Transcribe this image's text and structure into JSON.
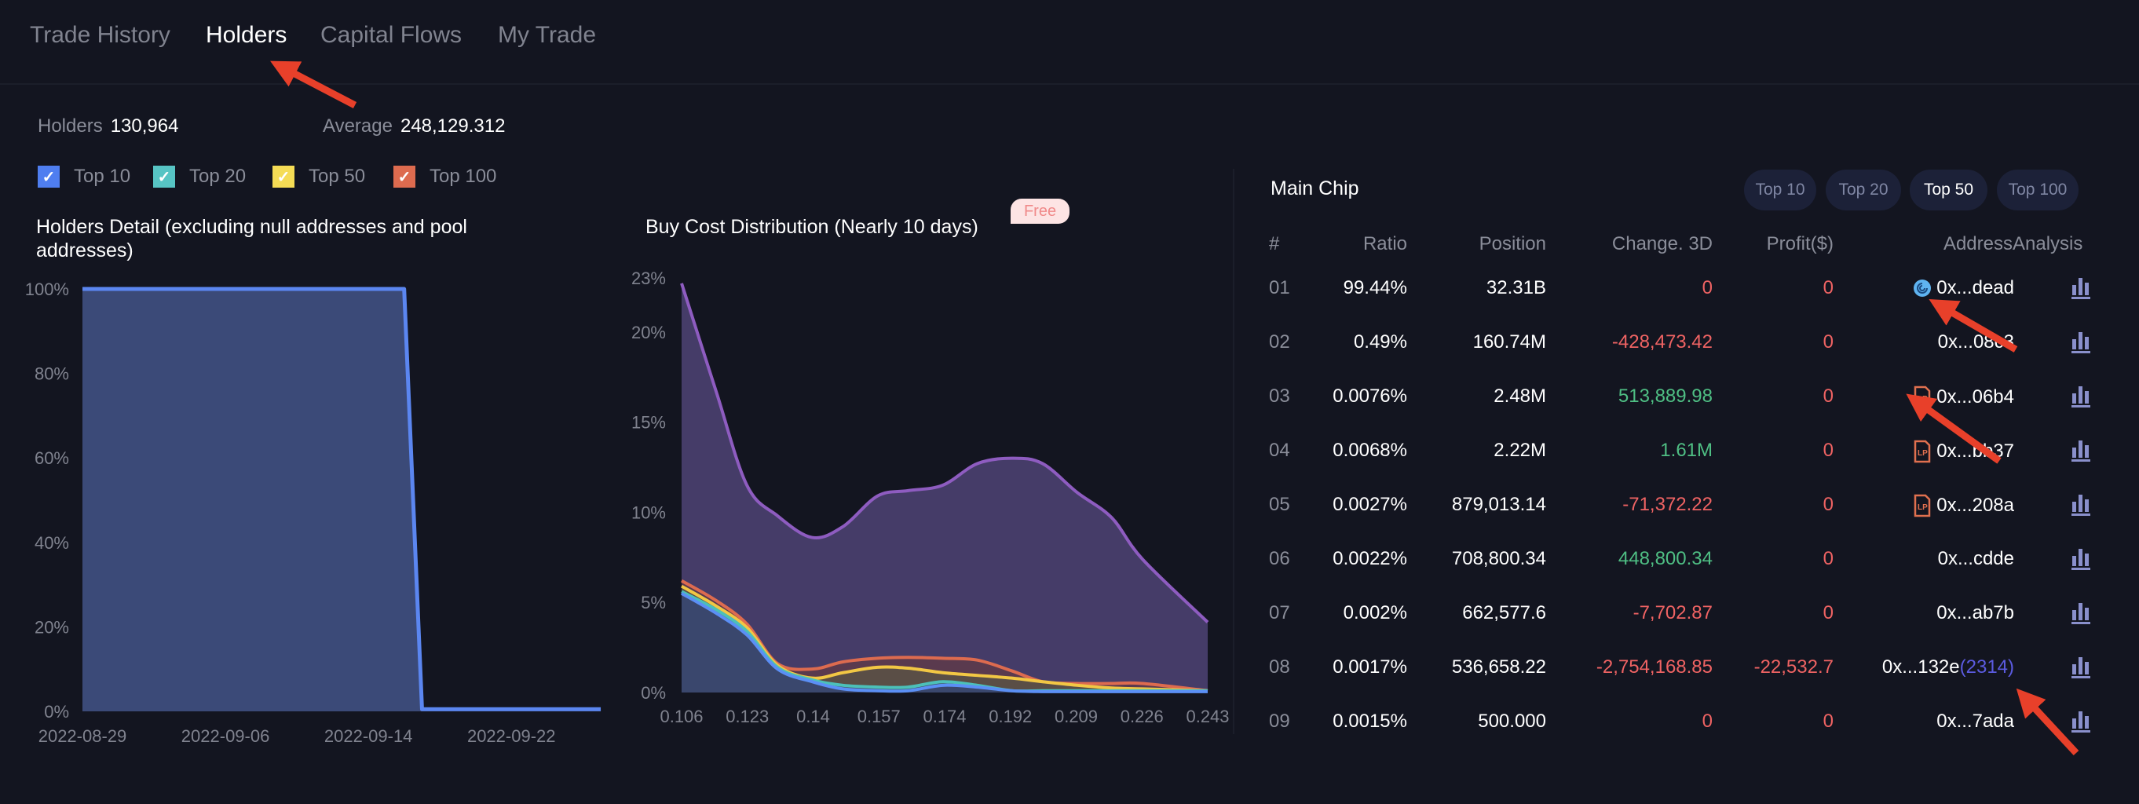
{
  "tabs": [
    {
      "label": "Trade History",
      "active": false
    },
    {
      "label": "Holders",
      "active": true
    },
    {
      "label": "Capital Flows",
      "active": false
    },
    {
      "label": "My Trade",
      "active": false
    }
  ],
  "stats": {
    "holders_label": "Holders",
    "holders_value": "130,964",
    "average_label": "Average",
    "average_value": "248,129.312"
  },
  "filters": [
    {
      "label": "Top 10",
      "color": "#4f7ef0",
      "checked": true
    },
    {
      "label": "Top 20",
      "color": "#57c4c4",
      "checked": true
    },
    {
      "label": "Top 50",
      "color": "#f5dc55",
      "checked": true
    },
    {
      "label": "Top 100",
      "color": "#dd6b4f",
      "checked": true
    }
  ],
  "colors": {
    "background": "#131520",
    "negative": "#ef6363",
    "positive": "#4fbf84",
    "link": "#5b5be0",
    "annotation": "#e8402a"
  },
  "holders_chart": {
    "title": "Holders Detail (excluding null addresses and pool addresses)"
  },
  "cost_chart": {
    "title": "Buy Cost Distribution (Nearly 10 days)",
    "badge": "Free"
  },
  "chart_data": [
    {
      "type": "area",
      "title": "Holders Detail (excluding null addresses and pool addresses)",
      "x_tick_labels": [
        "2022-08-29",
        "2022-09-06",
        "2022-09-14",
        "2022-09-22"
      ],
      "y_tick_labels": [
        "0%",
        "20%",
        "40%",
        "60%",
        "80%",
        "100%"
      ],
      "ylim": [
        0,
        100
      ],
      "grid": false,
      "series": [
        {
          "color": "#5b86f0",
          "x": [
            "2022-08-29",
            "2022-09-16",
            "2022-09-17",
            "2022-09-27"
          ],
          "y": [
            100,
            100,
            0.5,
            0.5
          ]
        }
      ]
    },
    {
      "type": "area",
      "title": "Buy Cost Distribution (Nearly 10 days)",
      "x_tick_labels": [
        "0.106",
        "0.123",
        "0.14",
        "0.157",
        "0.174",
        "0.192",
        "0.209",
        "0.226",
        "0.243"
      ],
      "y_tick_labels": [
        "0%",
        "5%",
        "10%",
        "15%",
        "20%",
        "23%"
      ],
      "xlim": [
        0.106,
        0.243
      ],
      "ylim": [
        0,
        23
      ],
      "grid": false,
      "x": [
        0.106,
        0.115,
        0.123,
        0.131,
        0.14,
        0.148,
        0.157,
        0.165,
        0.174,
        0.183,
        0.192,
        0.2,
        0.209,
        0.218,
        0.226,
        0.243
      ],
      "series": [
        {
          "color": "#8e5cc0",
          "fill": "#453c68",
          "y": [
            22.7,
            16.7,
            11.5,
            9.8,
            8.6,
            9.2,
            10.9,
            11.2,
            11.5,
            12.7,
            13.0,
            12.7,
            11.1,
            9.7,
            7.4,
            3.9
          ]
        },
        {
          "name": "Top 100",
          "color": "#dd6b4f",
          "fill": "#5e3a4a",
          "y": [
            6.2,
            5.1,
            3.8,
            1.6,
            1.3,
            1.7,
            1.9,
            1.95,
            1.9,
            1.8,
            1.2,
            0.6,
            0.5,
            0.5,
            0.5,
            0.1
          ]
        },
        {
          "name": "Top 50",
          "color": "#f2c744",
          "fill": "#5b5245",
          "y": [
            5.9,
            4.8,
            3.6,
            1.5,
            0.8,
            1.1,
            1.4,
            1.35,
            1.1,
            0.95,
            0.8,
            0.6,
            0.4,
            0.25,
            0.2,
            0.1
          ]
        },
        {
          "name": "Top 20",
          "color": "#4cc0b8",
          "fill": "#3c4c66",
          "y": [
            5.6,
            4.6,
            3.4,
            1.4,
            0.7,
            0.4,
            0.3,
            0.3,
            0.6,
            0.4,
            0.1,
            0.1,
            0.1,
            0.1,
            0.1,
            0.1
          ]
        },
        {
          "name": "Top 10",
          "color": "#5b8ff5",
          "fill": "#394670",
          "y": [
            5.5,
            4.4,
            3.2,
            1.3,
            0.6,
            0.2,
            0.1,
            0.1,
            0.4,
            0.3,
            0.1,
            0.05,
            0.05,
            0.05,
            0.05,
            0.05
          ]
        }
      ]
    }
  ],
  "main_chip": {
    "title": "Main Chip",
    "buttons": [
      {
        "label": "Top 10",
        "active": false
      },
      {
        "label": "Top 20",
        "active": false
      },
      {
        "label": "Top 50",
        "active": true
      },
      {
        "label": "Top 100",
        "active": false
      }
    ],
    "columns": [
      "#",
      "Ratio",
      "Position",
      "Change. 3D",
      "Profit($)",
      "Address",
      "Analysis"
    ],
    "rows": [
      {
        "rank": "01",
        "ratio": "99.44%",
        "position": "32.31B",
        "change": "0",
        "change_sign": "neg",
        "profit": "0",
        "address": "0x...dead",
        "icon": "burn-spiral",
        "count": ""
      },
      {
        "rank": "02",
        "ratio": "0.49%",
        "position": "160.74M",
        "change": "-428,473.42",
        "change_sign": "neg",
        "profit": "0",
        "address": "0x...08c3",
        "icon": "",
        "count": ""
      },
      {
        "rank": "03",
        "ratio": "0.0076%",
        "position": "2.48M",
        "change": "513,889.98",
        "change_sign": "pos",
        "profit": "0",
        "address": "0x...06b4",
        "icon": "lp",
        "count": ""
      },
      {
        "rank": "04",
        "ratio": "0.0068%",
        "position": "2.22M",
        "change": "1.61M",
        "change_sign": "pos",
        "profit": "0",
        "address": "0x...bb37",
        "icon": "lp",
        "count": ""
      },
      {
        "rank": "05",
        "ratio": "0.0027%",
        "position": "879,013.14",
        "change": "-71,372.22",
        "change_sign": "neg",
        "profit": "0",
        "address": "0x...208a",
        "icon": "lp",
        "count": ""
      },
      {
        "rank": "06",
        "ratio": "0.0022%",
        "position": "708,800.34",
        "change": "448,800.34",
        "change_sign": "pos",
        "profit": "0",
        "address": "0x...cdde",
        "icon": "",
        "count": ""
      },
      {
        "rank": "07",
        "ratio": "0.002%",
        "position": "662,577.6",
        "change": "-7,702.87",
        "change_sign": "neg",
        "profit": "0",
        "address": "0x...ab7b",
        "icon": "",
        "count": ""
      },
      {
        "rank": "08",
        "ratio": "0.0017%",
        "position": "536,658.22",
        "change": "-2,754,168.85",
        "change_sign": "neg",
        "profit": "-22,532.7",
        "address": "0x...132e",
        "icon": "",
        "count": "(2314)"
      },
      {
        "rank": "09",
        "ratio": "0.0015%",
        "position": "500.000",
        "change": "0",
        "change_sign": "neg",
        "profit": "0",
        "address": "0x...7ada",
        "icon": "",
        "count": ""
      }
    ]
  }
}
